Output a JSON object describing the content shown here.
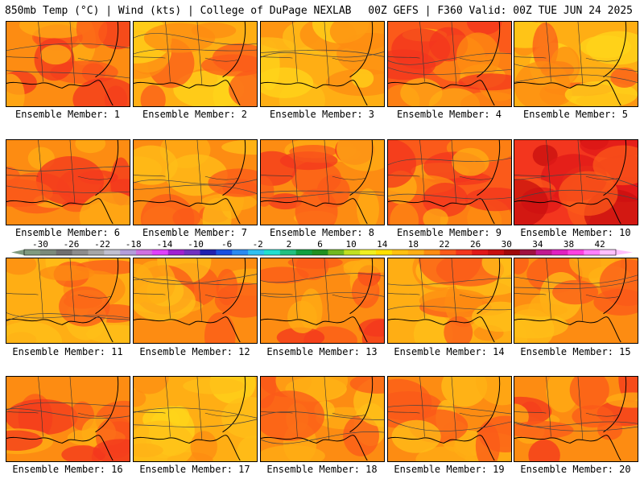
{
  "header": {
    "left": "850mb Temp (°C) | Wind (kts) | College of DuPage NEXLAB",
    "right": "00Z GEFS | F360 Valid: 00Z TUE JUN 24 2025"
  },
  "members": [
    {
      "label": "Ensemble Member: 1",
      "palette": [
        "#fd8c12",
        "#fb5a1a",
        "#f3361e",
        "#ffae14"
      ]
    },
    {
      "label": "Ensemble Member: 2",
      "palette": [
        "#ffae14",
        "#fd8c12",
        "#fb5a1a",
        "#ffd41a"
      ]
    },
    {
      "label": "Ensemble Member: 3",
      "palette": [
        "#ffae14",
        "#ffbf18",
        "#fd8c12",
        "#ffd41a"
      ]
    },
    {
      "label": "Ensemble Member: 4",
      "palette": [
        "#fb5a1a",
        "#fd8c12",
        "#f3361e",
        "#ffae14"
      ]
    },
    {
      "label": "Ensemble Member: 5",
      "palette": [
        "#ffae14",
        "#fd8c12",
        "#ffd41a",
        "#fb5a1a"
      ]
    },
    {
      "label": "Ensemble Member: 6",
      "palette": [
        "#fd8c12",
        "#fb5a1a",
        "#ffae14",
        "#f3361e"
      ]
    },
    {
      "label": "Ensemble Member: 7",
      "palette": [
        "#fd8c12",
        "#ffae14",
        "#fb5a1a",
        "#ffbf18"
      ]
    },
    {
      "label": "Ensemble Member: 8",
      "palette": [
        "#fd8c12",
        "#fb5a1a",
        "#ffae14",
        "#f3361e"
      ]
    },
    {
      "label": "Ensemble Member: 9",
      "palette": [
        "#fb5a1a",
        "#fd8c12",
        "#f3361e",
        "#ffae14"
      ]
    },
    {
      "label": "Ensemble Member: 10",
      "palette": [
        "#f3361e",
        "#e01818",
        "#fb5a1a",
        "#c80f0f"
      ]
    },
    {
      "label": "Ensemble Member: 11",
      "palette": [
        "#ffae14",
        "#fd8c12",
        "#ffbf18",
        "#fb5a1a"
      ]
    },
    {
      "label": "Ensemble Member: 12",
      "palette": [
        "#fd8c12",
        "#ffae14",
        "#fb5a1a",
        "#ffbf18"
      ]
    },
    {
      "label": "Ensemble Member: 13",
      "palette": [
        "#fd8c12",
        "#fb5a1a",
        "#ffae14",
        "#f3361e"
      ]
    },
    {
      "label": "Ensemble Member: 14",
      "palette": [
        "#ffae14",
        "#fd8c12",
        "#ffbf18",
        "#fb5a1a"
      ]
    },
    {
      "label": "Ensemble Member: 15",
      "palette": [
        "#fd8c12",
        "#ffae14",
        "#fb5a1a",
        "#ffbf18"
      ]
    },
    {
      "label": "Ensemble Member: 16",
      "palette": [
        "#fd8c12",
        "#fb5a1a",
        "#f3361e",
        "#ffae14"
      ]
    },
    {
      "label": "Ensemble Member: 17",
      "palette": [
        "#ffae14",
        "#fd8c12",
        "#ffbf18",
        "#ffd41a"
      ]
    },
    {
      "label": "Ensemble Member: 18",
      "palette": [
        "#fd8c12",
        "#ffae14",
        "#fb5a1a",
        "#ffbf18"
      ]
    },
    {
      "label": "Ensemble Member: 19",
      "palette": [
        "#fd8c12",
        "#ffae14",
        "#fb5a1a",
        "#ffbf18"
      ]
    },
    {
      "label": "Ensemble Member: 20",
      "palette": [
        "#fd8c12",
        "#fb5a1a",
        "#ffae14",
        "#f3361e"
      ]
    }
  ],
  "colorbar": {
    "labels": [
      "-30",
      "-26",
      "-22",
      "-18",
      "-14",
      "-10",
      "-6",
      "-2",
      "2",
      "6",
      "10",
      "14",
      "18",
      "22",
      "26",
      "30",
      "34",
      "38",
      "42"
    ],
    "colors": [
      "#7f9b7f",
      "#7a8a7a",
      "#6f6f6f",
      "#8c8c8c",
      "#a6a6a6",
      "#c0c0cf",
      "#b39ddb",
      "#d070e0",
      "#e040fb",
      "#a020d0",
      "#7030c0",
      "#2020b0",
      "#1850e0",
      "#2a8af0",
      "#30c0f0",
      "#20e0d0",
      "#20c080",
      "#10a040",
      "#209020",
      "#70b820",
      "#c0e020",
      "#f0f020",
      "#ffe000",
      "#ffc010",
      "#ffae14",
      "#fd8c12",
      "#fb5a1a",
      "#f3361e",
      "#e01818",
      "#c80f0f",
      "#a00a0a",
      "#a01040",
      "#c01890",
      "#e020c0",
      "#ff40e0",
      "#ff80ff",
      "#ffc0ff"
    ]
  }
}
